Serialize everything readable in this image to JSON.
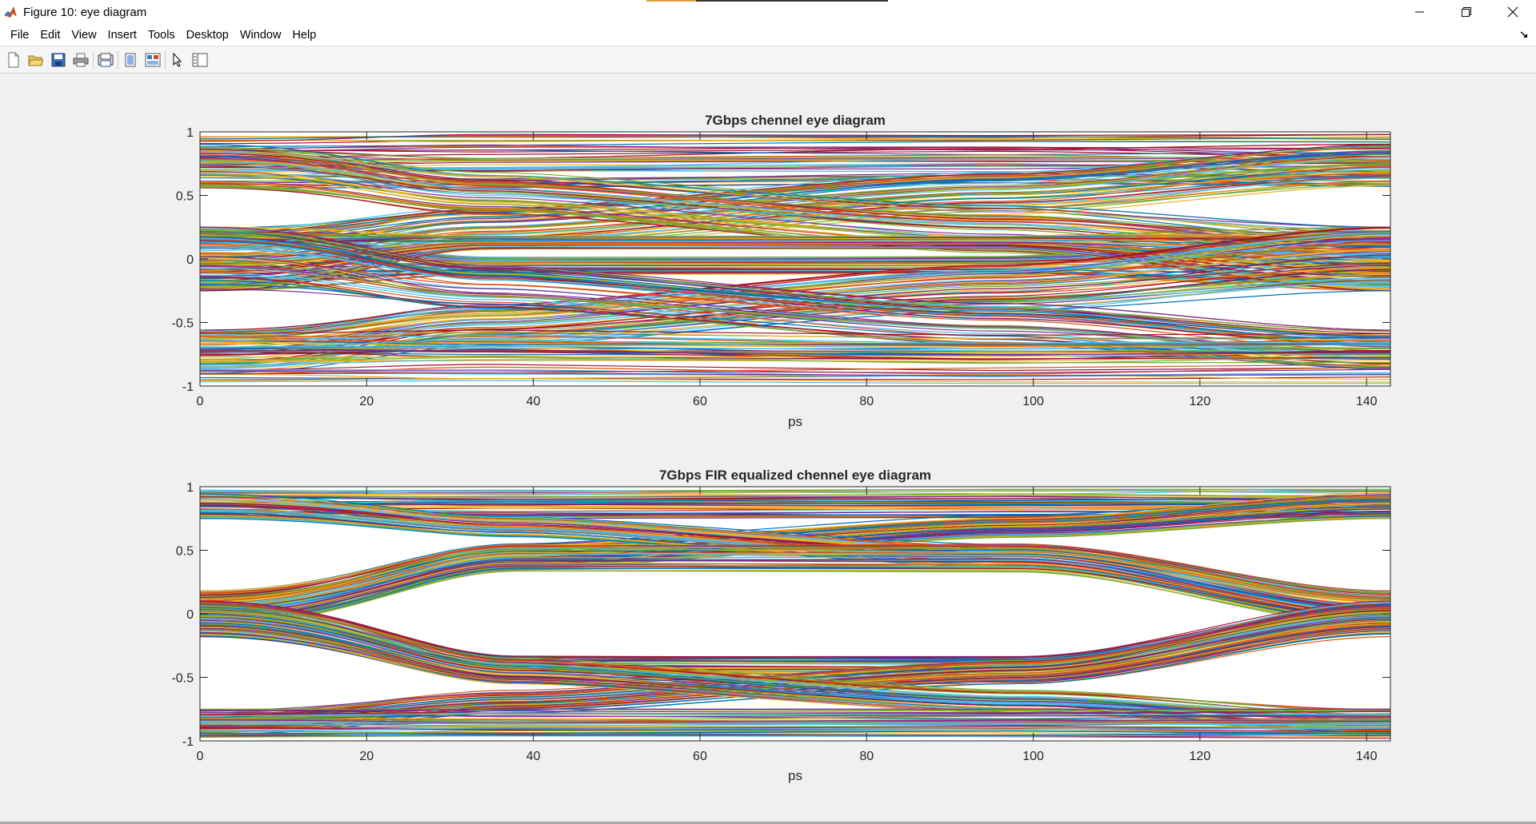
{
  "window": {
    "title": "Figure 10: eye diagram",
    "icon": "matlab-icon",
    "controls": [
      "minimize-icon",
      "restore-icon",
      "close-icon"
    ]
  },
  "menu": [
    "File",
    "Edit",
    "View",
    "Insert",
    "Tools",
    "Desktop",
    "Window",
    "Help"
  ],
  "toolbar": {
    "icons": [
      "new-figure-icon",
      "open-file-icon",
      "save-icon",
      "print-icon",
      "print-preview-icon",
      "hide-plot-tools-icon",
      "show-plot-tools-icon",
      "edit-plot-pointer-icon",
      "property-editor-icon"
    ]
  },
  "colors": {
    "window_bg": "#f0f0f0",
    "axes_bg": "#ffffff",
    "trace_palette": [
      "#0072bd",
      "#d95319",
      "#edb120",
      "#7e2f8e",
      "#77ac30",
      "#4dbeee",
      "#a2142f"
    ]
  },
  "chart_data": [
    {
      "type": "line",
      "title": "7Gbps chennel eye diagram",
      "xlabel": "ps",
      "ylabel": "",
      "xlim": [
        0,
        142.86
      ],
      "ylim": [
        -1,
        1
      ],
      "xticks": [
        0,
        20,
        40,
        60,
        80,
        100,
        120,
        140
      ],
      "yticks": [
        -1,
        -0.5,
        0,
        0.5,
        1
      ],
      "xtick_labels": [
        "0",
        "20",
        "40",
        "60",
        "80",
        "100",
        "120",
        "140"
      ],
      "ytick_labels": [
        "-1",
        "-0.5",
        "0",
        "0.5",
        "1"
      ],
      "grid": false,
      "eye_center_x": 65,
      "series": [
        {
          "shape": "high-band",
          "y": [
            [
              0.56,
              0.98
            ],
            [
              0.56,
              0.98
            ],
            [
              0.6,
              0.98
            ],
            [
              0.57,
              0.98
            ]
          ]
        },
        {
          "shape": "rising-to-high",
          "y": [
            [
              -0.25,
              0.25
            ],
            [
              0.05,
              0.42
            ],
            [
              0.35,
              0.68
            ],
            [
              0.56,
              0.9
            ]
          ]
        },
        {
          "shape": "falling-from-high",
          "y": [
            [
              0.56,
              0.9
            ],
            [
              0.35,
              0.68
            ],
            [
              0.05,
              0.42
            ],
            [
              -0.25,
              0.25
            ]
          ]
        },
        {
          "shape": "low-crossing",
          "y": [
            [
              -0.25,
              0.25
            ],
            [
              -0.12,
              0.02
            ],
            [
              -0.12,
              0.02
            ],
            [
              -0.25,
              0.25
            ]
          ]
        },
        {
          "shape": "high-crossing",
          "y": [
            [
              -0.25,
              0.25
            ],
            [
              0.08,
              0.18
            ],
            [
              0.08,
              0.18
            ],
            [
              -0.25,
              0.25
            ]
          ]
        },
        {
          "shape": "rising-from-low",
          "y": [
            [
              -0.9,
              -0.56
            ],
            [
              -0.68,
              -0.35
            ],
            [
              -0.42,
              -0.05
            ],
            [
              -0.25,
              0.25
            ]
          ]
        },
        {
          "shape": "falling-to-low",
          "y": [
            [
              -0.25,
              0.25
            ],
            [
              -0.42,
              -0.05
            ],
            [
              -0.68,
              -0.35
            ],
            [
              -0.9,
              -0.56
            ]
          ]
        },
        {
          "shape": "low-band",
          "y": [
            [
              -0.98,
              -0.56
            ],
            [
              -0.98,
              -0.56
            ],
            [
              -0.98,
              -0.6
            ],
            [
              -0.98,
              -0.57
            ]
          ]
        }
      ]
    },
    {
      "type": "line",
      "title": "7Gbps FIR equalized chennel eye diagram",
      "xlabel": "ps",
      "ylabel": "",
      "xlim": [
        0,
        142.86
      ],
      "ylim": [
        -1,
        1
      ],
      "xticks": [
        0,
        20,
        40,
        60,
        80,
        100,
        120,
        140
      ],
      "yticks": [
        -1,
        -0.5,
        0,
        0.5,
        1
      ],
      "xtick_labels": [
        "0",
        "20",
        "40",
        "60",
        "80",
        "100",
        "120",
        "140"
      ],
      "ytick_labels": [
        "-1",
        "-0.5",
        "0",
        "0.5",
        "1"
      ],
      "grid": false,
      "eye_center_x": 68,
      "series": [
        {
          "shape": "high-band",
          "y": [
            [
              0.75,
              0.98
            ],
            [
              0.75,
              0.98
            ],
            [
              0.75,
              0.98
            ],
            [
              0.75,
              0.98
            ]
          ]
        },
        {
          "shape": "rising-to-high",
          "y": [
            [
              -0.1,
              0.18
            ],
            [
              0.35,
              0.55
            ],
            [
              0.6,
              0.78
            ],
            [
              0.75,
              0.95
            ]
          ]
        },
        {
          "shape": "falling-from-high",
          "y": [
            [
              0.75,
              0.95
            ],
            [
              0.6,
              0.78
            ],
            [
              0.35,
              0.55
            ],
            [
              -0.1,
              0.18
            ]
          ]
        },
        {
          "shape": "eye-top",
          "y": [
            [
              -0.1,
              0.18
            ],
            [
              0.33,
              0.55
            ],
            [
              0.33,
              0.55
            ],
            [
              -0.1,
              0.18
            ]
          ]
        },
        {
          "shape": "eye-bottom",
          "y": [
            [
              -0.18,
              0.1
            ],
            [
              -0.55,
              -0.33
            ],
            [
              -0.55,
              -0.33
            ],
            [
              -0.18,
              0.1
            ]
          ]
        },
        {
          "shape": "rising-from-low",
          "y": [
            [
              -0.95,
              -0.75
            ],
            [
              -0.78,
              -0.6
            ],
            [
              -0.55,
              -0.35
            ],
            [
              -0.18,
              0.1
            ]
          ]
        },
        {
          "shape": "falling-to-low",
          "y": [
            [
              -0.18,
              0.1
            ],
            [
              -0.55,
              -0.35
            ],
            [
              -0.78,
              -0.6
            ],
            [
              -0.95,
              -0.75
            ]
          ]
        },
        {
          "shape": "low-band",
          "y": [
            [
              -0.98,
              -0.75
            ],
            [
              -0.98,
              -0.75
            ],
            [
              -0.98,
              -0.75
            ],
            [
              -0.98,
              -0.75
            ]
          ]
        }
      ]
    }
  ]
}
